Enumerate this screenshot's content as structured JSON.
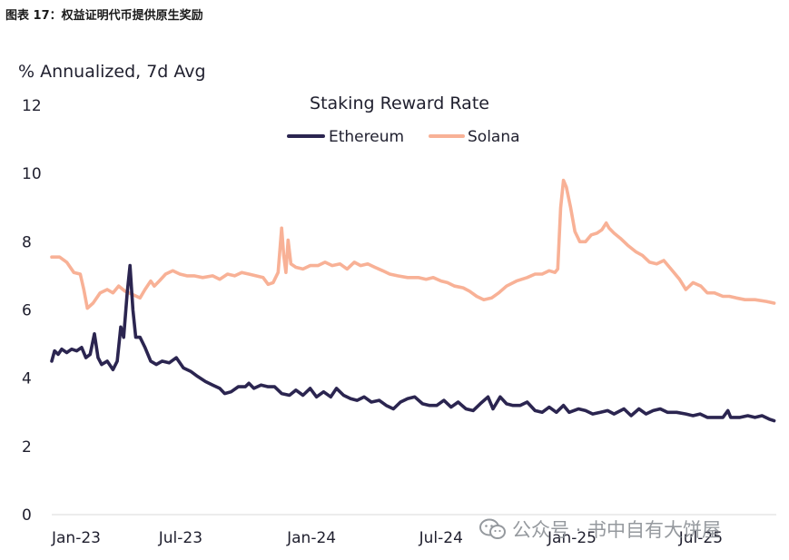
{
  "figure_caption": "图表 17：权益证明代币提供原生奖励",
  "watermark": "公众号 · 书中自有大饼屋",
  "colors": {
    "ethereum": "#2b2550",
    "solana": "#f8b196",
    "text": "#1f1f2e"
  },
  "chart_data": {
    "type": "line",
    "title": "Staking Reward Rate",
    "ylabel": "% Annualized, 7d Avg",
    "xlabel": "",
    "ylim": [
      0,
      12
    ],
    "yticks": [
      0,
      2,
      4,
      6,
      8,
      10,
      12
    ],
    "xlim": [
      "2023-01-01",
      "2025-10-15"
    ],
    "xticks": [
      "2023-01-01",
      "2023-07-01",
      "2024-01-01",
      "2024-07-01",
      "2025-01-01",
      "2025-07-01"
    ],
    "xtick_labels": [
      "Jan-23",
      "Jul-23",
      "Jan-24",
      "Jul-24",
      "Jan-25",
      "Jul-25"
    ],
    "grid": false,
    "legend": "top-center",
    "series": [
      {
        "name": "Ethereum",
        "color": "#2b2550",
        "points": [
          [
            "2023-01-01",
            4.5
          ],
          [
            "2023-01-05",
            4.8
          ],
          [
            "2023-01-10",
            4.7
          ],
          [
            "2023-01-15",
            4.85
          ],
          [
            "2023-01-22",
            4.75
          ],
          [
            "2023-01-29",
            4.85
          ],
          [
            "2023-02-05",
            4.8
          ],
          [
            "2023-02-12",
            4.9
          ],
          [
            "2023-02-18",
            4.6
          ],
          [
            "2023-02-24",
            4.7
          ],
          [
            "2023-03-02",
            5.3
          ],
          [
            "2023-03-07",
            4.6
          ],
          [
            "2023-03-12",
            4.4
          ],
          [
            "2023-03-20",
            4.5
          ],
          [
            "2023-03-28",
            4.25
          ],
          [
            "2023-04-03",
            4.5
          ],
          [
            "2023-04-08",
            5.5
          ],
          [
            "2023-04-12",
            5.2
          ],
          [
            "2023-04-17",
            6.5
          ],
          [
            "2023-04-21",
            7.3
          ],
          [
            "2023-04-25",
            6.0
          ],
          [
            "2023-04-29",
            5.2
          ],
          [
            "2023-05-05",
            5.2
          ],
          [
            "2023-05-12",
            4.9
          ],
          [
            "2023-05-20",
            4.5
          ],
          [
            "2023-05-28",
            4.4
          ],
          [
            "2023-06-05",
            4.5
          ],
          [
            "2023-06-15",
            4.45
          ],
          [
            "2023-06-25",
            4.6
          ],
          [
            "2023-07-05",
            4.3
          ],
          [
            "2023-07-15",
            4.2
          ],
          [
            "2023-07-25",
            4.05
          ],
          [
            "2023-08-05",
            3.9
          ],
          [
            "2023-08-15",
            3.8
          ],
          [
            "2023-08-25",
            3.7
          ],
          [
            "2023-09-01",
            3.55
          ],
          [
            "2023-09-10",
            3.6
          ],
          [
            "2023-09-20",
            3.75
          ],
          [
            "2023-09-30",
            3.75
          ],
          [
            "2023-10-05",
            3.85
          ],
          [
            "2023-10-12",
            3.7
          ],
          [
            "2023-10-22",
            3.8
          ],
          [
            "2023-11-01",
            3.75
          ],
          [
            "2023-11-10",
            3.75
          ],
          [
            "2023-11-20",
            3.55
          ],
          [
            "2023-12-01",
            3.5
          ],
          [
            "2023-12-10",
            3.65
          ],
          [
            "2023-12-20",
            3.5
          ],
          [
            "2023-12-30",
            3.7
          ],
          [
            "2024-01-08",
            3.45
          ],
          [
            "2024-01-18",
            3.6
          ],
          [
            "2024-01-28",
            3.45
          ],
          [
            "2024-02-05",
            3.7
          ],
          [
            "2024-02-15",
            3.5
          ],
          [
            "2024-02-25",
            3.4
          ],
          [
            "2024-03-05",
            3.35
          ],
          [
            "2024-03-15",
            3.45
          ],
          [
            "2024-03-25",
            3.3
          ],
          [
            "2024-04-05",
            3.35
          ],
          [
            "2024-04-15",
            3.2
          ],
          [
            "2024-04-25",
            3.1
          ],
          [
            "2024-05-05",
            3.3
          ],
          [
            "2024-05-15",
            3.4
          ],
          [
            "2024-05-25",
            3.45
          ],
          [
            "2024-06-05",
            3.25
          ],
          [
            "2024-06-15",
            3.2
          ],
          [
            "2024-06-25",
            3.2
          ],
          [
            "2024-07-05",
            3.35
          ],
          [
            "2024-07-15",
            3.15
          ],
          [
            "2024-07-25",
            3.3
          ],
          [
            "2024-08-05",
            3.1
          ],
          [
            "2024-08-15",
            3.05
          ],
          [
            "2024-08-25",
            3.25
          ],
          [
            "2024-09-05",
            3.45
          ],
          [
            "2024-09-12",
            3.1
          ],
          [
            "2024-09-22",
            3.45
          ],
          [
            "2024-10-01",
            3.25
          ],
          [
            "2024-10-10",
            3.2
          ],
          [
            "2024-10-20",
            3.2
          ],
          [
            "2024-10-30",
            3.3
          ],
          [
            "2024-11-10",
            3.05
          ],
          [
            "2024-11-20",
            3.0
          ],
          [
            "2024-11-30",
            3.15
          ],
          [
            "2024-12-10",
            3.0
          ],
          [
            "2024-12-20",
            3.2
          ],
          [
            "2024-12-28",
            3.0
          ],
          [
            "2025-01-10",
            3.1
          ],
          [
            "2025-01-20",
            3.05
          ],
          [
            "2025-01-30",
            2.95
          ],
          [
            "2025-02-10",
            3.0
          ],
          [
            "2025-02-20",
            3.05
          ],
          [
            "2025-03-01",
            2.95
          ],
          [
            "2025-03-15",
            3.1
          ],
          [
            "2025-03-25",
            2.9
          ],
          [
            "2025-04-05",
            3.1
          ],
          [
            "2025-04-15",
            2.95
          ],
          [
            "2025-04-25",
            3.05
          ],
          [
            "2025-05-05",
            3.1
          ],
          [
            "2025-05-15",
            3.0
          ],
          [
            "2025-05-28",
            3.0
          ],
          [
            "2025-06-10",
            2.95
          ],
          [
            "2025-06-20",
            2.9
          ],
          [
            "2025-06-30",
            2.95
          ],
          [
            "2025-07-10",
            2.85
          ],
          [
            "2025-07-20",
            2.85
          ],
          [
            "2025-08-01",
            2.85
          ],
          [
            "2025-08-08",
            3.05
          ],
          [
            "2025-08-12",
            2.85
          ],
          [
            "2025-08-25",
            2.85
          ],
          [
            "2025-09-05",
            2.9
          ],
          [
            "2025-09-15",
            2.85
          ],
          [
            "2025-09-25",
            2.9
          ],
          [
            "2025-10-05",
            2.8
          ],
          [
            "2025-10-12",
            2.75
          ]
        ]
      },
      {
        "name": "Solana",
        "color": "#f8b196",
        "points": [
          [
            "2023-01-01",
            7.55
          ],
          [
            "2023-01-12",
            7.55
          ],
          [
            "2023-01-22",
            7.4
          ],
          [
            "2023-02-01",
            7.1
          ],
          [
            "2023-02-10",
            7.05
          ],
          [
            "2023-02-15",
            6.6
          ],
          [
            "2023-02-20",
            6.05
          ],
          [
            "2023-02-28",
            6.2
          ],
          [
            "2023-03-10",
            6.5
          ],
          [
            "2023-03-20",
            6.6
          ],
          [
            "2023-03-28",
            6.5
          ],
          [
            "2023-04-05",
            6.7
          ],
          [
            "2023-04-14",
            6.55
          ],
          [
            "2023-04-25",
            6.45
          ],
          [
            "2023-05-05",
            6.35
          ],
          [
            "2023-05-12",
            6.6
          ],
          [
            "2023-05-20",
            6.85
          ],
          [
            "2023-05-25",
            6.7
          ],
          [
            "2023-06-01",
            6.85
          ],
          [
            "2023-06-10",
            7.05
          ],
          [
            "2023-06-20",
            7.15
          ],
          [
            "2023-06-30",
            7.05
          ],
          [
            "2023-07-10",
            7.0
          ],
          [
            "2023-07-20",
            7.0
          ],
          [
            "2023-08-01",
            6.95
          ],
          [
            "2023-08-15",
            7.0
          ],
          [
            "2023-08-25",
            6.9
          ],
          [
            "2023-09-05",
            7.05
          ],
          [
            "2023-09-15",
            7.0
          ],
          [
            "2023-09-25",
            7.1
          ],
          [
            "2023-10-05",
            7.05
          ],
          [
            "2023-10-15",
            7.0
          ],
          [
            "2023-10-25",
            6.95
          ],
          [
            "2023-11-01",
            6.75
          ],
          [
            "2023-11-08",
            6.8
          ],
          [
            "2023-11-15",
            7.1
          ],
          [
            "2023-11-20",
            8.4
          ],
          [
            "2023-11-23",
            7.6
          ],
          [
            "2023-11-26",
            7.1
          ],
          [
            "2023-11-29",
            8.05
          ],
          [
            "2023-12-03",
            7.35
          ],
          [
            "2023-12-10",
            7.25
          ],
          [
            "2023-12-20",
            7.2
          ],
          [
            "2023-12-30",
            7.3
          ],
          [
            "2024-01-10",
            7.3
          ],
          [
            "2024-01-20",
            7.4
          ],
          [
            "2024-01-30",
            7.3
          ],
          [
            "2024-02-10",
            7.35
          ],
          [
            "2024-02-20",
            7.2
          ],
          [
            "2024-03-01",
            7.4
          ],
          [
            "2024-03-10",
            7.3
          ],
          [
            "2024-03-20",
            7.35
          ],
          [
            "2024-03-30",
            7.25
          ],
          [
            "2024-04-10",
            7.15
          ],
          [
            "2024-04-20",
            7.05
          ],
          [
            "2024-05-01",
            7.0
          ],
          [
            "2024-05-15",
            6.95
          ],
          [
            "2024-05-30",
            6.95
          ],
          [
            "2024-06-10",
            6.9
          ],
          [
            "2024-06-20",
            6.95
          ],
          [
            "2024-07-01",
            6.85
          ],
          [
            "2024-07-10",
            6.8
          ],
          [
            "2024-07-20",
            6.7
          ],
          [
            "2024-08-01",
            6.65
          ],
          [
            "2024-08-10",
            6.55
          ],
          [
            "2024-08-20",
            6.4
          ],
          [
            "2024-08-30",
            6.3
          ],
          [
            "2024-09-10",
            6.35
          ],
          [
            "2024-09-20",
            6.5
          ],
          [
            "2024-10-01",
            6.7
          ],
          [
            "2024-10-15",
            6.85
          ],
          [
            "2024-10-30",
            6.95
          ],
          [
            "2024-11-10",
            7.05
          ],
          [
            "2024-11-20",
            7.05
          ],
          [
            "2024-11-30",
            7.15
          ],
          [
            "2024-12-08",
            7.1
          ],
          [
            "2024-12-12",
            7.2
          ],
          [
            "2024-12-16",
            9.0
          ],
          [
            "2024-12-20",
            9.8
          ],
          [
            "2024-12-24",
            9.6
          ],
          [
            "2024-12-30",
            9.0
          ],
          [
            "2025-01-05",
            8.3
          ],
          [
            "2025-01-12",
            8.0
          ],
          [
            "2025-01-20",
            8.0
          ],
          [
            "2025-01-28",
            8.2
          ],
          [
            "2025-02-05",
            8.25
          ],
          [
            "2025-02-12",
            8.35
          ],
          [
            "2025-02-18",
            8.55
          ],
          [
            "2025-02-22",
            8.4
          ],
          [
            "2025-03-01",
            8.25
          ],
          [
            "2025-03-10",
            8.1
          ],
          [
            "2025-03-20",
            7.9
          ],
          [
            "2025-04-01",
            7.7
          ],
          [
            "2025-04-10",
            7.6
          ],
          [
            "2025-04-20",
            7.4
          ],
          [
            "2025-04-30",
            7.35
          ],
          [
            "2025-05-10",
            7.45
          ],
          [
            "2025-05-20",
            7.2
          ],
          [
            "2025-06-01",
            6.9
          ],
          [
            "2025-06-10",
            6.6
          ],
          [
            "2025-06-20",
            6.8
          ],
          [
            "2025-07-01",
            6.7
          ],
          [
            "2025-07-10",
            6.5
          ],
          [
            "2025-07-20",
            6.5
          ],
          [
            "2025-08-01",
            6.4
          ],
          [
            "2025-08-10",
            6.4
          ],
          [
            "2025-08-20",
            6.35
          ],
          [
            "2025-09-01",
            6.3
          ],
          [
            "2025-09-15",
            6.3
          ],
          [
            "2025-10-01",
            6.25
          ],
          [
            "2025-10-12",
            6.2
          ]
        ]
      }
    ]
  }
}
